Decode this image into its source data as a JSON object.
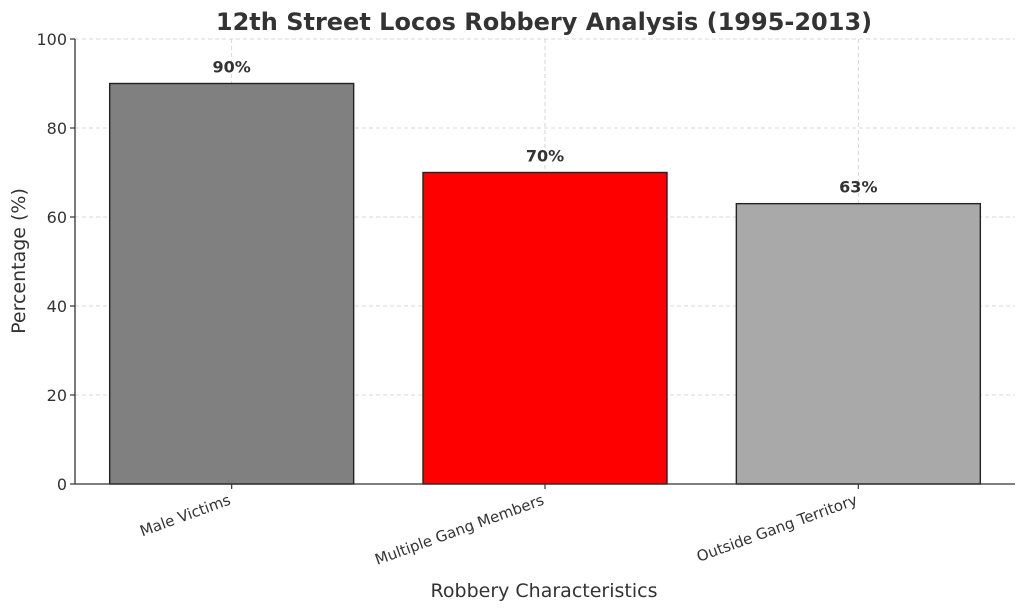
{
  "chart_data": {
    "type": "bar",
    "title": "12th Street Locos Robbery Analysis (1995-2013)",
    "xlabel": "Robbery Characteristics",
    "ylabel": "Percentage (%)",
    "ylim": [
      0,
      100
    ],
    "yticks": [
      0,
      20,
      40,
      60,
      80,
      100
    ],
    "categories": [
      "Male Victims",
      "Multiple Gang Members",
      "Outside Gang Territory"
    ],
    "values": [
      90,
      70,
      63
    ],
    "data_labels": [
      "90%",
      "70%",
      "63%"
    ],
    "colors": [
      "#808080",
      "#ff0000",
      "#a9a9a9"
    ],
    "grid": true
  }
}
